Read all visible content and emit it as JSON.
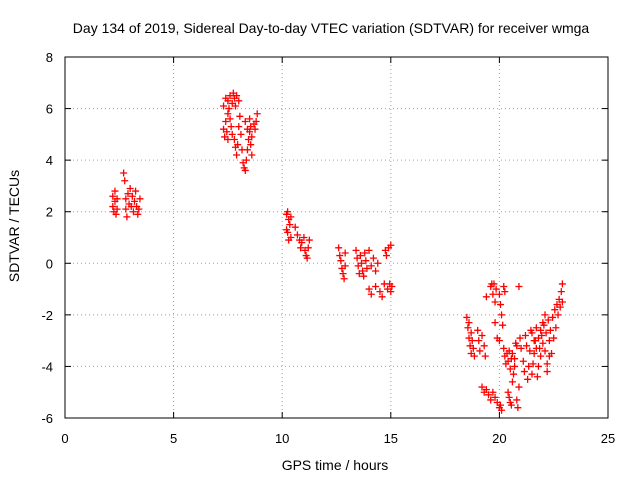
{
  "chart_data": {
    "type": "scatter",
    "title": "Day 134 of 2019, Sidereal Day-to-day VTEC variation (SDTVAR) for receiver wmga",
    "xlabel": "GPS time / hours",
    "ylabel": "SDTVAR / TECUs",
    "xlim": [
      0,
      25
    ],
    "ylim": [
      -6,
      8
    ],
    "xticks": [
      "0",
      "5",
      "10",
      "15",
      "20",
      "25"
    ],
    "yticks": [
      "-6",
      "-4",
      "-2",
      "0",
      "2",
      "4",
      "6",
      "8"
    ],
    "grid": true,
    "marker": "+",
    "marker_color": "#ff0000",
    "series": [
      {
        "name": "SDTVAR",
        "points": [
          [
            2.2,
            2.6
          ],
          [
            2.2,
            2.2
          ],
          [
            2.25,
            2.0
          ],
          [
            2.3,
            2.4
          ],
          [
            2.3,
            2.8
          ],
          [
            2.35,
            1.9
          ],
          [
            2.4,
            2.5
          ],
          [
            2.4,
            2.1
          ],
          [
            2.7,
            3.5
          ],
          [
            2.75,
            3.2
          ],
          [
            2.8,
            2.5
          ],
          [
            2.8,
            2.1
          ],
          [
            2.85,
            1.8
          ],
          [
            2.9,
            2.7
          ],
          [
            2.95,
            2.3
          ],
          [
            3.0,
            2.9
          ],
          [
            3.05,
            2.2
          ],
          [
            3.1,
            2.6
          ],
          [
            3.15,
            2.0
          ],
          [
            3.2,
            2.4
          ],
          [
            3.25,
            2.8
          ],
          [
            3.3,
            2.2
          ],
          [
            3.35,
            1.9
          ],
          [
            3.4,
            2.1
          ],
          [
            3.45,
            2.5
          ],
          [
            7.3,
            6.1
          ],
          [
            7.4,
            6.4
          ],
          [
            7.5,
            6.3
          ],
          [
            7.5,
            5.8
          ],
          [
            7.55,
            6.0
          ],
          [
            7.6,
            6.5
          ],
          [
            7.7,
            6.2
          ],
          [
            7.75,
            6.6
          ],
          [
            7.8,
            6.4
          ],
          [
            7.85,
            6.1
          ],
          [
            7.9,
            6.5
          ],
          [
            8.0,
            6.3
          ],
          [
            7.3,
            5.2
          ],
          [
            7.35,
            4.9
          ],
          [
            7.4,
            5.5
          ],
          [
            7.45,
            5.1
          ],
          [
            7.5,
            4.8
          ],
          [
            7.6,
            5.6
          ],
          [
            7.65,
            5.3
          ],
          [
            7.7,
            5.0
          ],
          [
            7.8,
            4.8
          ],
          [
            7.85,
            4.5
          ],
          [
            7.9,
            4.2
          ],
          [
            7.95,
            4.6
          ],
          [
            8.0,
            5.3
          ],
          [
            8.05,
            5.7
          ],
          [
            8.1,
            5.0
          ],
          [
            8.15,
            4.4
          ],
          [
            8.2,
            3.9
          ],
          [
            8.25,
            3.7
          ],
          [
            8.3,
            3.6
          ],
          [
            8.35,
            4.0
          ],
          [
            8.4,
            4.4
          ],
          [
            8.45,
            4.8
          ],
          [
            8.5,
            5.1
          ],
          [
            8.55,
            4.6
          ],
          [
            8.6,
            4.2
          ],
          [
            8.3,
            5.5
          ],
          [
            8.4,
            5.2
          ],
          [
            8.5,
            5.6
          ],
          [
            8.55,
            5.3
          ],
          [
            8.6,
            4.9
          ],
          [
            8.7,
            5.4
          ],
          [
            8.75,
            5.2
          ],
          [
            8.8,
            5.5
          ],
          [
            8.85,
            5.8
          ],
          [
            10.2,
            1.9
          ],
          [
            10.25,
            2.0
          ],
          [
            10.3,
            1.7
          ],
          [
            10.35,
            1.5
          ],
          [
            10.4,
            1.8
          ],
          [
            10.2,
            1.3
          ],
          [
            10.25,
            1.2
          ],
          [
            10.3,
            0.9
          ],
          [
            10.4,
            1.0
          ],
          [
            10.6,
            1.4
          ],
          [
            10.7,
            1.1
          ],
          [
            10.8,
            0.9
          ],
          [
            10.85,
            0.6
          ],
          [
            10.9,
            0.8
          ],
          [
            11.0,
            1.0
          ],
          [
            11.05,
            0.5
          ],
          [
            11.1,
            0.3
          ],
          [
            11.15,
            0.2
          ],
          [
            11.2,
            0.6
          ],
          [
            11.25,
            0.9
          ],
          [
            12.6,
            0.6
          ],
          [
            12.65,
            0.3
          ],
          [
            12.7,
            0.1
          ],
          [
            12.75,
            -0.2
          ],
          [
            12.8,
            -0.4
          ],
          [
            12.85,
            -0.6
          ],
          [
            12.9,
            0.4
          ],
          [
            12.9,
            -0.1
          ],
          [
            13.4,
            0.5
          ],
          [
            13.45,
            0.2
          ],
          [
            13.5,
            -0.1
          ],
          [
            13.55,
            -0.4
          ],
          [
            13.6,
            0.3
          ],
          [
            13.65,
            0.0
          ],
          [
            13.7,
            -0.3
          ],
          [
            13.75,
            -0.5
          ],
          [
            13.8,
            0.4
          ],
          [
            13.85,
            0.1
          ],
          [
            13.9,
            -0.2
          ],
          [
            14.0,
            0.5
          ],
          [
            14.1,
            -0.1
          ],
          [
            14.2,
            0.2
          ],
          [
            14.3,
            -0.3
          ],
          [
            14.4,
            0.0
          ],
          [
            14.0,
            -1.0
          ],
          [
            14.1,
            -1.2
          ],
          [
            14.3,
            -0.9
          ],
          [
            14.5,
            -1.1
          ],
          [
            14.6,
            -1.3
          ],
          [
            14.7,
            -0.8
          ],
          [
            14.75,
            0.5
          ],
          [
            14.8,
            0.3
          ],
          [
            14.85,
            -1.0
          ],
          [
            14.9,
            0.6
          ],
          [
            14.95,
            -0.8
          ],
          [
            15.0,
            0.7
          ],
          [
            15.0,
            -1.1
          ],
          [
            15.05,
            -0.9
          ],
          [
            18.5,
            -2.1
          ],
          [
            18.55,
            -2.5
          ],
          [
            18.6,
            -2.9
          ],
          [
            18.65,
            -3.2
          ],
          [
            18.7,
            -3.5
          ],
          [
            18.6,
            -2.3
          ],
          [
            18.7,
            -2.7
          ],
          [
            18.75,
            -3.0
          ],
          [
            18.8,
            -3.3
          ],
          [
            18.85,
            -3.6
          ],
          [
            19.0,
            -2.6
          ],
          [
            19.05,
            -3.0
          ],
          [
            19.1,
            -3.4
          ],
          [
            19.2,
            -2.8
          ],
          [
            19.3,
            -3.2
          ],
          [
            19.35,
            -3.6
          ],
          [
            19.4,
            -1.3
          ],
          [
            19.2,
            -4.8
          ],
          [
            19.3,
            -5.0
          ],
          [
            19.4,
            -4.9
          ],
          [
            19.5,
            -5.1
          ],
          [
            19.6,
            -5.3
          ],
          [
            19.7,
            -5.0
          ],
          [
            19.8,
            -5.2
          ],
          [
            19.9,
            -5.4
          ],
          [
            19.6,
            -0.9
          ],
          [
            19.65,
            -0.8
          ],
          [
            19.7,
            -1.2
          ],
          [
            19.75,
            -0.8
          ],
          [
            19.8,
            -1.5
          ],
          [
            19.85,
            -1.0
          ],
          [
            19.8,
            -2.3
          ],
          [
            19.9,
            -2.9
          ],
          [
            20.0,
            -3.0
          ],
          [
            20.0,
            -1.2
          ],
          [
            20.05,
            -1.6
          ],
          [
            20.1,
            -2.0
          ],
          [
            20.15,
            -2.4
          ],
          [
            20.2,
            -0.9
          ],
          [
            20.25,
            -1.1
          ],
          [
            20.0,
            -5.6
          ],
          [
            20.05,
            -5.5
          ],
          [
            20.1,
            -5.7
          ],
          [
            20.2,
            -3.3
          ],
          [
            20.25,
            -3.6
          ],
          [
            20.3,
            -3.9
          ],
          [
            20.35,
            -3.5
          ],
          [
            20.4,
            -3.8
          ],
          [
            20.45,
            -3.4
          ],
          [
            20.5,
            -4.1
          ],
          [
            20.55,
            -3.7
          ],
          [
            20.4,
            -5.0
          ],
          [
            20.45,
            -5.2
          ],
          [
            20.5,
            -5.4
          ],
          [
            20.55,
            -5.5
          ],
          [
            20.6,
            -4.6
          ],
          [
            20.65,
            -4.3
          ],
          [
            20.7,
            -4.0
          ],
          [
            20.8,
            -3.2
          ],
          [
            20.6,
            -3.5
          ],
          [
            20.7,
            -3.7
          ],
          [
            20.75,
            -3.1
          ],
          [
            20.8,
            -5.3
          ],
          [
            20.85,
            -5.6
          ],
          [
            20.9,
            -4.8
          ],
          [
            20.9,
            -0.9
          ],
          [
            20.95,
            -2.9
          ],
          [
            21.0,
            -3.3
          ],
          [
            21.1,
            -3.8
          ],
          [
            21.15,
            -4.2
          ],
          [
            21.2,
            -2.8
          ],
          [
            21.25,
            -3.2
          ],
          [
            21.3,
            -4.5
          ],
          [
            21.35,
            -4.0
          ],
          [
            21.4,
            -3.4
          ],
          [
            21.45,
            -2.6
          ],
          [
            21.5,
            -4.3
          ],
          [
            21.55,
            -3.9
          ],
          [
            21.6,
            -3.5
          ],
          [
            21.65,
            -3.0
          ],
          [
            21.7,
            -2.5
          ],
          [
            21.75,
            -4.4
          ],
          [
            21.8,
            -4.0
          ],
          [
            21.85,
            -3.3
          ],
          [
            21.9,
            -3.6
          ],
          [
            21.95,
            -2.8
          ],
          [
            22.0,
            -3.1
          ],
          [
            22.05,
            -2.4
          ],
          [
            22.1,
            -3.4
          ],
          [
            22.15,
            -2.7
          ],
          [
            22.2,
            -3.9
          ],
          [
            22.25,
            -2.2
          ],
          [
            22.3,
            -3.0
          ],
          [
            22.35,
            -2.6
          ],
          [
            22.4,
            -3.5
          ],
          [
            22.45,
            -2.1
          ],
          [
            22.5,
            -2.9
          ],
          [
            22.55,
            -1.8
          ],
          [
            22.6,
            -2.5
          ],
          [
            22.65,
            -1.6
          ],
          [
            22.7,
            -2.0
          ],
          [
            22.75,
            -1.4
          ],
          [
            22.8,
            -1.7
          ],
          [
            22.85,
            -1.1
          ],
          [
            22.9,
            -0.8
          ],
          [
            22.9,
            -1.5
          ],
          [
            21.5,
            -2.7
          ],
          [
            21.6,
            -3.0
          ],
          [
            21.7,
            -3.3
          ],
          [
            21.8,
            -2.9
          ],
          [
            21.9,
            -2.6
          ],
          [
            22.0,
            -2.3
          ],
          [
            22.1,
            -2.0
          ],
          [
            22.2,
            -4.2
          ],
          [
            22.3,
            -3.6
          ]
        ]
      }
    ]
  }
}
